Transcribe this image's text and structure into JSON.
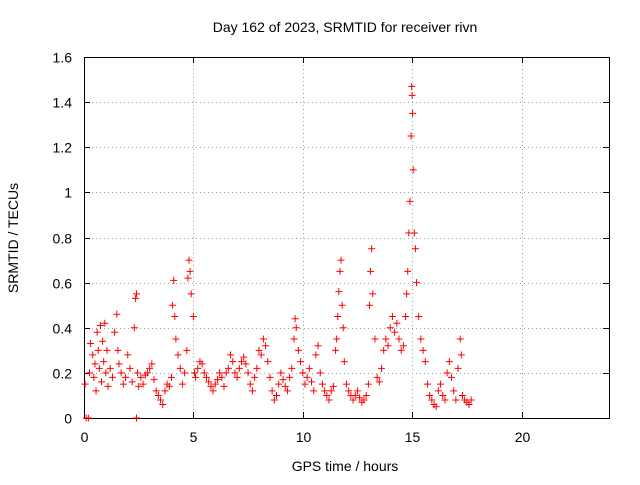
{
  "chart_data": {
    "type": "scatter",
    "title": "Day 162 of 2023, SRMTID for receiver rivn",
    "xlabel": "GPS time / hours",
    "ylabel": "SRMTID / TECUs",
    "xlim": [
      0,
      24
    ],
    "ylim": [
      0,
      1.6
    ],
    "xticks": [
      0,
      5,
      10,
      15,
      20
    ],
    "xtick_labels": [
      "0",
      "5",
      "10",
      "15",
      "20"
    ],
    "yticks": [
      0,
      0.2,
      0.4,
      0.6,
      0.8,
      1,
      1.2,
      1.4,
      1.6
    ],
    "ytick_labels": [
      "0",
      "0.2",
      "0.4",
      "0.6",
      "0.8",
      "1",
      "1.2",
      "1.4",
      "1.6"
    ],
    "grid": true,
    "marker": "plus",
    "color": "#ff0000",
    "series": [
      {
        "name": "SRMTID",
        "points": [
          [
            0.05,
            0.15
          ],
          [
            0.1,
            0.0
          ],
          [
            0.2,
            0.0
          ],
          [
            0.25,
            0.2
          ],
          [
            0.3,
            0.33
          ],
          [
            0.4,
            0.28
          ],
          [
            0.45,
            0.18
          ],
          [
            0.5,
            0.24
          ],
          [
            0.55,
            0.12
          ],
          [
            0.6,
            0.38
          ],
          [
            0.65,
            0.3
          ],
          [
            0.7,
            0.22
          ],
          [
            0.75,
            0.41
          ],
          [
            0.8,
            0.16
          ],
          [
            0.85,
            0.34
          ],
          [
            0.9,
            0.25
          ],
          [
            0.95,
            0.42
          ],
          [
            1.0,
            0.2
          ],
          [
            1.05,
            0.3
          ],
          [
            1.1,
            0.14
          ],
          [
            1.2,
            0.22
          ],
          [
            1.3,
            0.18
          ],
          [
            1.4,
            0.38
          ],
          [
            1.5,
            0.46
          ],
          [
            1.55,
            0.3
          ],
          [
            1.6,
            0.24
          ],
          [
            1.7,
            0.2
          ],
          [
            1.8,
            0.15
          ],
          [
            1.9,
            0.18
          ],
          [
            2.0,
            0.28
          ],
          [
            2.1,
            0.22
          ],
          [
            2.2,
            0.16
          ],
          [
            2.3,
            0.4
          ],
          [
            2.35,
            0.53
          ],
          [
            2.4,
            0.55
          ],
          [
            2.45,
            0.2
          ],
          [
            2.5,
            0.14
          ],
          [
            2.4,
            0.0
          ],
          [
            2.6,
            0.18
          ],
          [
            2.7,
            0.15
          ],
          [
            2.8,
            0.19
          ],
          [
            2.9,
            0.2
          ],
          [
            3.0,
            0.22
          ],
          [
            3.1,
            0.24
          ],
          [
            3.2,
            0.17
          ],
          [
            3.3,
            0.12
          ],
          [
            3.4,
            0.1
          ],
          [
            3.5,
            0.08
          ],
          [
            3.6,
            0.06
          ],
          [
            3.7,
            0.12
          ],
          [
            3.8,
            0.15
          ],
          [
            3.9,
            0.14
          ],
          [
            4.0,
            0.18
          ],
          [
            4.05,
            0.5
          ],
          [
            4.1,
            0.61
          ],
          [
            4.15,
            0.45
          ],
          [
            4.2,
            0.35
          ],
          [
            4.3,
            0.28
          ],
          [
            4.4,
            0.22
          ],
          [
            4.5,
            0.15
          ],
          [
            4.6,
            0.2
          ],
          [
            4.7,
            0.3
          ],
          [
            4.75,
            0.62
          ],
          [
            4.8,
            0.7
          ],
          [
            4.85,
            0.65
          ],
          [
            4.9,
            0.55
          ],
          [
            5.0,
            0.45
          ],
          [
            5.05,
            0.2
          ],
          [
            5.1,
            0.18
          ],
          [
            5.2,
            0.22
          ],
          [
            5.3,
            0.25
          ],
          [
            5.4,
            0.24
          ],
          [
            5.5,
            0.2
          ],
          [
            5.6,
            0.18
          ],
          [
            5.7,
            0.16
          ],
          [
            5.8,
            0.14
          ],
          [
            5.9,
            0.12
          ],
          [
            6.0,
            0.15
          ],
          [
            6.1,
            0.17
          ],
          [
            6.2,
            0.2
          ],
          [
            6.3,
            0.18
          ],
          [
            6.4,
            0.14
          ],
          [
            6.5,
            0.2
          ],
          [
            6.6,
            0.22
          ],
          [
            6.7,
            0.28
          ],
          [
            6.8,
            0.25
          ],
          [
            6.9,
            0.2
          ],
          [
            7.0,
            0.18
          ],
          [
            7.1,
            0.22
          ],
          [
            7.2,
            0.25
          ],
          [
            7.3,
            0.27
          ],
          [
            7.4,
            0.24
          ],
          [
            7.5,
            0.2
          ],
          [
            7.6,
            0.15
          ],
          [
            7.7,
            0.12
          ],
          [
            7.8,
            0.18
          ],
          [
            7.9,
            0.22
          ],
          [
            8.0,
            0.3
          ],
          [
            8.1,
            0.28
          ],
          [
            8.2,
            0.35
          ],
          [
            8.3,
            0.32
          ],
          [
            8.4,
            0.25
          ],
          [
            8.5,
            0.18
          ],
          [
            8.6,
            0.12
          ],
          [
            8.7,
            0.08
          ],
          [
            8.8,
            0.1
          ],
          [
            8.9,
            0.15
          ],
          [
            9.0,
            0.2
          ],
          [
            9.1,
            0.17
          ],
          [
            9.2,
            0.14
          ],
          [
            9.3,
            0.12
          ],
          [
            9.4,
            0.18
          ],
          [
            9.5,
            0.22
          ],
          [
            9.6,
            0.35
          ],
          [
            9.65,
            0.44
          ],
          [
            9.7,
            0.4
          ],
          [
            9.8,
            0.3
          ],
          [
            9.9,
            0.25
          ],
          [
            10.0,
            0.2
          ],
          [
            10.1,
            0.15
          ],
          [
            10.2,
            0.18
          ],
          [
            10.3,
            0.22
          ],
          [
            10.4,
            0.16
          ],
          [
            10.5,
            0.12
          ],
          [
            10.6,
            0.28
          ],
          [
            10.7,
            0.32
          ],
          [
            10.8,
            0.2
          ],
          [
            10.9,
            0.15
          ],
          [
            11.0,
            0.12
          ],
          [
            11.1,
            0.1
          ],
          [
            11.2,
            0.08
          ],
          [
            11.3,
            0.12
          ],
          [
            11.4,
            0.14
          ],
          [
            11.5,
            0.3
          ],
          [
            11.55,
            0.35
          ],
          [
            11.6,
            0.45
          ],
          [
            11.65,
            0.56
          ],
          [
            11.7,
            0.65
          ],
          [
            11.75,
            0.7
          ],
          [
            11.8,
            0.5
          ],
          [
            11.85,
            0.4
          ],
          [
            11.9,
            0.25
          ],
          [
            12.0,
            0.15
          ],
          [
            12.1,
            0.12
          ],
          [
            12.2,
            0.1
          ],
          [
            12.3,
            0.08
          ],
          [
            12.4,
            0.1
          ],
          [
            12.5,
            0.12
          ],
          [
            12.6,
            0.09
          ],
          [
            12.7,
            0.07
          ],
          [
            12.8,
            0.08
          ],
          [
            12.9,
            0.1
          ],
          [
            13.0,
            0.15
          ],
          [
            13.05,
            0.5
          ],
          [
            13.1,
            0.65
          ],
          [
            13.15,
            0.75
          ],
          [
            13.2,
            0.55
          ],
          [
            13.3,
            0.35
          ],
          [
            13.4,
            0.18
          ],
          [
            13.5,
            0.16
          ],
          [
            13.6,
            0.22
          ],
          [
            13.7,
            0.3
          ],
          [
            13.8,
            0.35
          ],
          [
            13.9,
            0.32
          ],
          [
            14.0,
            0.4
          ],
          [
            14.1,
            0.45
          ],
          [
            14.2,
            0.38
          ],
          [
            14.3,
            0.42
          ],
          [
            14.4,
            0.35
          ],
          [
            14.5,
            0.3
          ],
          [
            14.6,
            0.32
          ],
          [
            14.7,
            0.45
          ],
          [
            14.75,
            0.55
          ],
          [
            14.8,
            0.65
          ],
          [
            14.85,
            0.82
          ],
          [
            14.9,
            0.96
          ],
          [
            14.95,
            1.25
          ],
          [
            15.0,
            1.43
          ],
          [
            14.98,
            1.47
          ],
          [
            15.02,
            1.35
          ],
          [
            15.05,
            1.1
          ],
          [
            15.1,
            0.82
          ],
          [
            15.15,
            0.75
          ],
          [
            15.2,
            0.6
          ],
          [
            15.3,
            0.45
          ],
          [
            15.4,
            0.35
          ],
          [
            15.5,
            0.3
          ],
          [
            15.6,
            0.25
          ],
          [
            15.7,
            0.15
          ],
          [
            15.8,
            0.1
          ],
          [
            15.9,
            0.08
          ],
          [
            16.0,
            0.06
          ],
          [
            16.1,
            0.05
          ],
          [
            16.2,
            0.12
          ],
          [
            16.3,
            0.15
          ],
          [
            16.4,
            0.1
          ],
          [
            16.5,
            0.08
          ],
          [
            16.6,
            0.2
          ],
          [
            16.7,
            0.25
          ],
          [
            16.8,
            0.18
          ],
          [
            16.9,
            0.12
          ],
          [
            17.0,
            0.08
          ],
          [
            17.1,
            0.22
          ],
          [
            17.2,
            0.35
          ],
          [
            17.25,
            0.28
          ],
          [
            17.3,
            0.1
          ],
          [
            17.4,
            0.08
          ],
          [
            17.5,
            0.07
          ],
          [
            17.6,
            0.06
          ],
          [
            17.7,
            0.08
          ]
        ]
      }
    ]
  }
}
